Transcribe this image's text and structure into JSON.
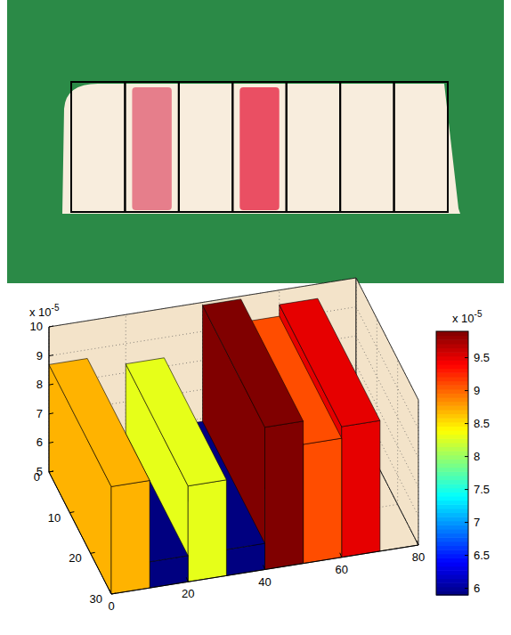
{
  "chart_data": {
    "type": "surface",
    "bins": [
      0,
      10,
      20,
      30,
      40,
      50,
      60,
      70
    ],
    "values": [
      8.7,
      5.9,
      8.3,
      5.9,
      9.9,
      9.1,
      9.5
    ],
    "xlim": [
      0,
      80
    ],
    "xticks": [
      0,
      20,
      40,
      60,
      80
    ],
    "ylim": [
      0,
      30
    ],
    "yticks": [
      0,
      10,
      20,
      30
    ],
    "zlim": [
      5,
      10
    ],
    "zticks": [
      5,
      6,
      7,
      8,
      9,
      10
    ],
    "z_multiplier": {
      "base_label": "x 10",
      "exponent": -5
    },
    "grid": true,
    "colorbar": {
      "range": [
        5.9,
        9.9
      ],
      "ticks": [
        6,
        6.5,
        7,
        7.5,
        8,
        8.5,
        9,
        9.5
      ],
      "base_label": "x 10",
      "exponent": -5
    }
  },
  "photo": {
    "boxes": 7,
    "stained_boxes": [
      1,
      3
    ]
  }
}
